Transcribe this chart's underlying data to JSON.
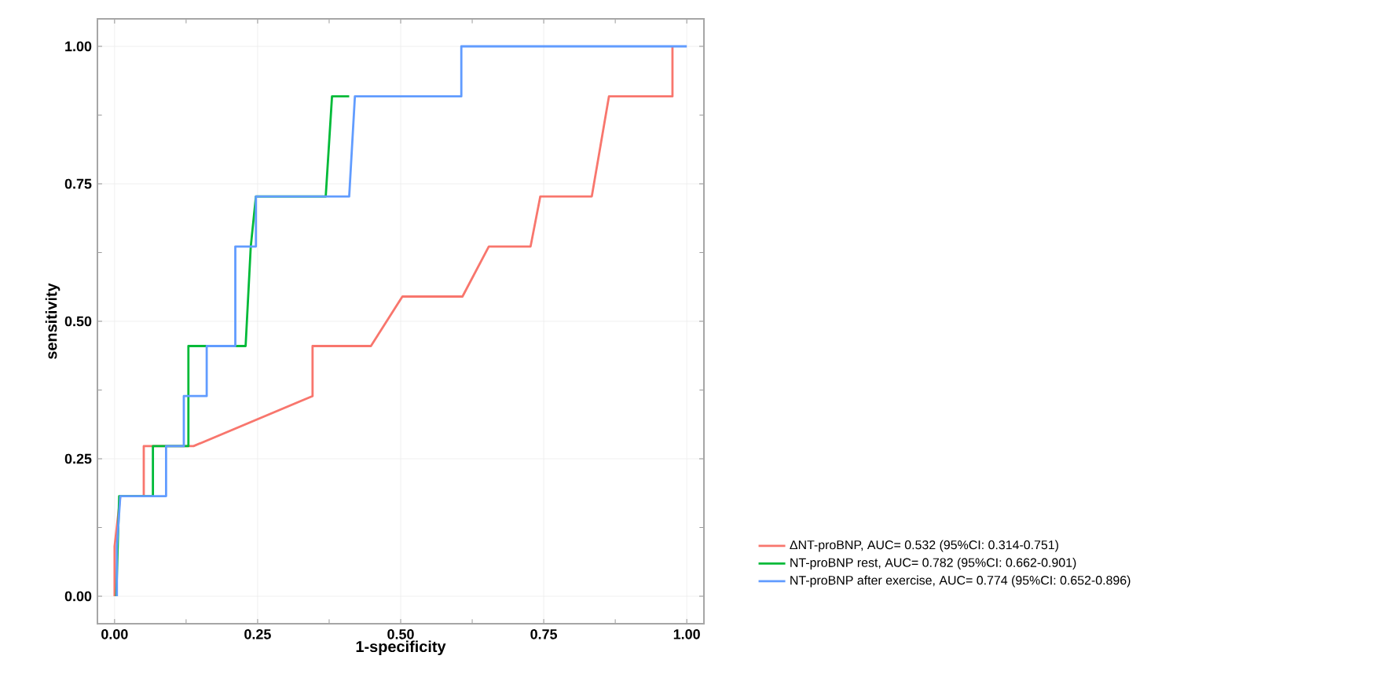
{
  "chart_data": {
    "type": "line",
    "xlabel": "1-specificity",
    "ylabel": "sensitivity",
    "xlim": [
      -0.03,
      1.03
    ],
    "ylim": [
      -0.05,
      1.05
    ],
    "xticks": [
      {
        "value": 0,
        "label": "0.00"
      },
      {
        "value": 0.25,
        "label": "0.25"
      },
      {
        "value": 0.5,
        "label": "0.50"
      },
      {
        "value": 0.75,
        "label": "0.75"
      },
      {
        "value": 1,
        "label": "1.00"
      }
    ],
    "yticks": [
      {
        "value": 0,
        "label": "0.00"
      },
      {
        "value": 0.25,
        "label": "0.25"
      },
      {
        "value": 0.5,
        "label": "0.50"
      },
      {
        "value": 0.75,
        "label": "0.75"
      },
      {
        "value": 1,
        "label": "1.00"
      }
    ],
    "grid": true,
    "legend": "right",
    "marker": "none",
    "line_style": "solid",
    "series": [
      {
        "name": "ΔNT-proBNP, AUC= 0.532 (95%CI: 0.314-0.751)",
        "color": "#f8766d",
        "x": [
          0,
          0,
          0.01,
          0.051,
          0.051,
          0.138,
          0.346,
          0.346,
          0.448,
          0.503,
          0.608,
          0.654,
          0.727,
          0.744,
          0.834,
          0.864,
          0.975,
          0.975
        ],
        "values": [
          0,
          0.091,
          0.182,
          0.182,
          0.273,
          0.273,
          0.364,
          0.455,
          0.455,
          0.545,
          0.545,
          0.636,
          0.636,
          0.727,
          0.727,
          0.909,
          0.909,
          1
        ]
      },
      {
        "name": "NT-proBNP rest, AUC= 0.782 (95%CI: 0.662-0.901)",
        "color": "#00ba38",
        "x": [
          0.003,
          0.008,
          0.067,
          0.067,
          0.129,
          0.129,
          0.229,
          0.238,
          0.247,
          0.369,
          0.38,
          0.41
        ],
        "values": [
          0,
          0.182,
          0.182,
          0.273,
          0.273,
          0.455,
          0.455,
          0.636,
          0.727,
          0.727,
          0.909,
          0.909
        ]
      },
      {
        "name": "NT-proBNP after exercise, AUC= 0.774 (95%CI: 0.652-0.896)",
        "color": "#619cff",
        "x": [
          0.004,
          0.004,
          0.01,
          0.09,
          0.09,
          0.121,
          0.121,
          0.161,
          0.161,
          0.211,
          0.211,
          0.247,
          0.247,
          0.41,
          0.42,
          0.606,
          0.606,
          1
        ],
        "values": [
          0,
          0.091,
          0.182,
          0.182,
          0.273,
          0.273,
          0.364,
          0.364,
          0.455,
          0.455,
          0.636,
          0.636,
          0.727,
          0.727,
          0.909,
          0.909,
          1,
          1
        ]
      }
    ]
  }
}
